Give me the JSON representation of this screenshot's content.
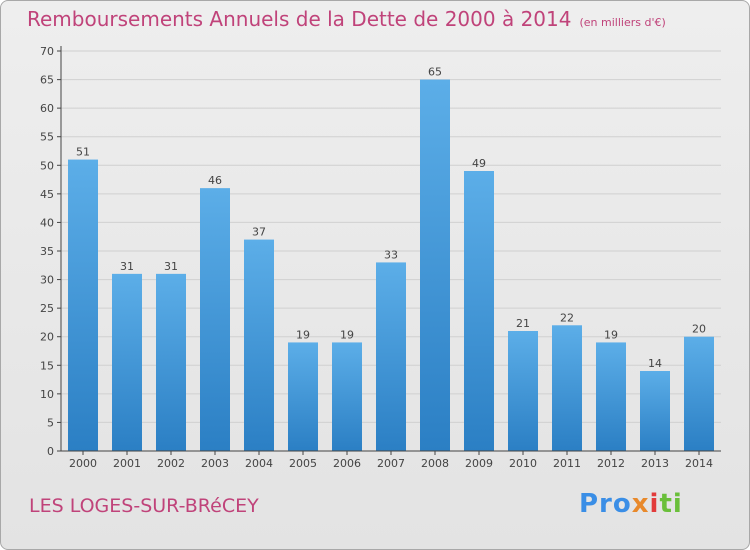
{
  "header": {
    "title": "Remboursements Annuels de la Dette de 2000 à 2014",
    "unit": "(en milliers d'€)"
  },
  "footer": {
    "commune": "LES LOGES-SUR-BRéCEY",
    "logo": "Proxiti"
  },
  "colors": {
    "bar_top": "#5caee8",
    "bar_bottom": "#2b7fc4",
    "title": "#c0437a",
    "grid": "#d0d0d0"
  },
  "chart_data": {
    "type": "bar",
    "title": "Remboursements Annuels de la Dette de 2000 à 2014",
    "xlabel": "",
    "ylabel": "",
    "ylim": [
      0,
      70
    ],
    "yticks": [
      0,
      5,
      10,
      15,
      20,
      25,
      30,
      35,
      40,
      45,
      50,
      55,
      60,
      65,
      70
    ],
    "grid": true,
    "categories": [
      "2000",
      "2001",
      "2002",
      "2003",
      "2004",
      "2005",
      "2006",
      "2007",
      "2008",
      "2009",
      "2010",
      "2011",
      "2012",
      "2013",
      "2014"
    ],
    "values": [
      51,
      31,
      31,
      46,
      37,
      19,
      19,
      33,
      65,
      49,
      21,
      22,
      19,
      14,
      20
    ]
  }
}
